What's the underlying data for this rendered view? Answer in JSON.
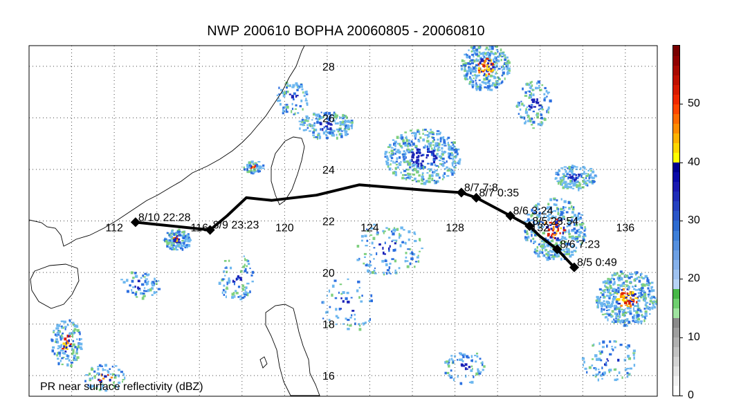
{
  "title": "NWP 200610 BOPHA 20060805 - 20060810",
  "caption": "PR near surface reflectivity (dBZ)",
  "map": {
    "lon_range": [
      108,
      137.5
    ],
    "lat_range": [
      15.2,
      28.8
    ],
    "lon_labels": [
      "112",
      "116",
      "120",
      "124",
      "128",
      "132",
      "136"
    ],
    "lat_labels": [
      "16",
      "18",
      "20",
      "22",
      "24",
      "26",
      "28"
    ]
  },
  "track": {
    "color": "#000000",
    "path_points": [
      {
        "lon": 113.0,
        "lat": 21.95
      },
      {
        "lon": 116.5,
        "lat": 21.65
      },
      {
        "lon": 117.3,
        "lat": 22.2
      },
      {
        "lon": 118.2,
        "lat": 22.9
      },
      {
        "lon": 119.4,
        "lat": 22.8
      },
      {
        "lon": 121.5,
        "lat": 23.0
      },
      {
        "lon": 123.5,
        "lat": 23.4
      },
      {
        "lon": 126.5,
        "lat": 23.2
      },
      {
        "lon": 128.3,
        "lat": 23.1
      },
      {
        "lon": 129.0,
        "lat": 22.9
      },
      {
        "lon": 130.6,
        "lat": 22.2
      },
      {
        "lon": 131.5,
        "lat": 21.8
      },
      {
        "lon": 132.0,
        "lat": 21.4
      },
      {
        "lon": 132.8,
        "lat": 20.9
      },
      {
        "lon": 133.6,
        "lat": 20.2
      }
    ],
    "markers": [
      {
        "lon": 113.0,
        "lat": 21.95,
        "label": "8/10 22:28"
      },
      {
        "lon": 116.5,
        "lat": 21.65,
        "label": "8/9 23:23"
      },
      {
        "lon": 128.3,
        "lat": 23.1,
        "label": "8/7 7:8"
      },
      {
        "lon": 129.0,
        "lat": 22.9,
        "label": "8/7 0:35"
      },
      {
        "lon": 130.6,
        "lat": 22.2,
        "label": "8/6 3:24"
      },
      {
        "lon": 131.5,
        "lat": 21.8,
        "label": "8/5 23:54"
      },
      {
        "lon": 133.6,
        "lat": 20.2,
        "label": "8/5 0:49"
      },
      {
        "lon": 132.8,
        "lat": 20.9,
        "label": "8/6 7:23"
      }
    ]
  },
  "colorbar": {
    "range": [
      0,
      60
    ],
    "tick_labels": [
      "0",
      "10",
      "20",
      "30",
      "40",
      "50"
    ],
    "tick_values": [
      0,
      10,
      20,
      30,
      40,
      50
    ],
    "colors": [
      "#ffffff",
      "#f2f2f2",
      "#e3e3e3",
      "#d3d3d3",
      "#c2c2c2",
      "#b0b0b0",
      "#9e9e9e",
      "#8a8a8a",
      "#9fe39f",
      "#6fcf6f",
      "#47b847",
      "#b7d3f5",
      "#9fc2f0",
      "#86b1ea",
      "#6da0e4",
      "#548fde",
      "#3c7ed8",
      "#2d6bd0",
      "#2a55c8",
      "#2541c0",
      "#1f2db8",
      "#1a1ab0",
      "#0a0aa8",
      "#00008f",
      "#ffff00",
      "#ffd700",
      "#ffb300",
      "#ff8c00",
      "#ff6a00",
      "#ff4500",
      "#f02800",
      "#d81a00",
      "#c01000",
      "#a80800",
      "#900000",
      "#780000"
    ]
  },
  "rain_colors": {
    "light": "#6db7ef",
    "medium": "#2c6fe0",
    "heavy": "#1a22b8",
    "green": "#7fd07f",
    "core": "#ff8c00",
    "hot": "#e02000",
    "yellow": "#ffd700"
  }
}
